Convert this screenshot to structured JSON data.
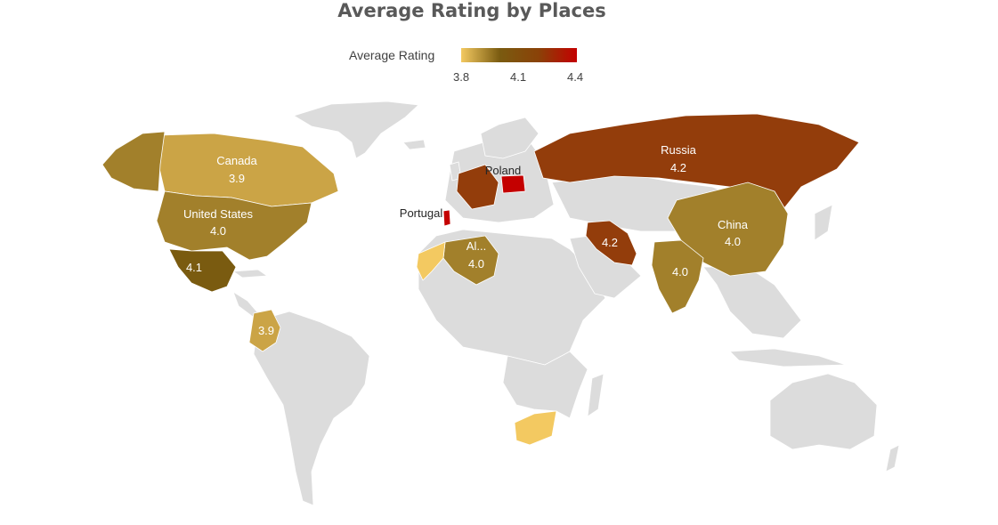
{
  "title": "Average Rating by Places",
  "legend": {
    "title": "Average Rating",
    "ticks": [
      "3.8",
      "4.1",
      "4.4"
    ],
    "colors": {
      "low": "#f3c961",
      "mid": "#7a5b10",
      "high": "#c40000"
    }
  },
  "colors": {
    "no_data": "#dcdcdc"
  },
  "places": [
    {
      "name": "Canada",
      "value": 3.9,
      "label_name": "Canada",
      "label_value": "3.9"
    },
    {
      "name": "United States",
      "value": 4.0,
      "label_name": "United States",
      "label_value": "4.0"
    },
    {
      "name": "Mexico",
      "value": 4.1,
      "label_name": "",
      "label_value": "4.1"
    },
    {
      "name": "Colombia",
      "value": 3.9,
      "label_name": "",
      "label_value": "3.9"
    },
    {
      "name": "Russia",
      "value": 4.2,
      "label_name": "Russia",
      "label_value": "4.2"
    },
    {
      "name": "China",
      "value": 4.0,
      "label_name": "China",
      "label_value": "4.0"
    },
    {
      "name": "India",
      "value": 4.0,
      "label_name": "",
      "label_value": "4.0"
    },
    {
      "name": "Iran",
      "value": 4.2,
      "label_name": "",
      "label_value": "4.2"
    },
    {
      "name": "Algeria",
      "value": 4.0,
      "label_name": "Al...",
      "label_value": "4.0"
    },
    {
      "name": "Poland",
      "value": 4.4,
      "label_name": "Poland",
      "label_value": ""
    },
    {
      "name": "Portugal",
      "value": 4.4,
      "label_name": "Portugal",
      "label_value": ""
    }
  ]
}
